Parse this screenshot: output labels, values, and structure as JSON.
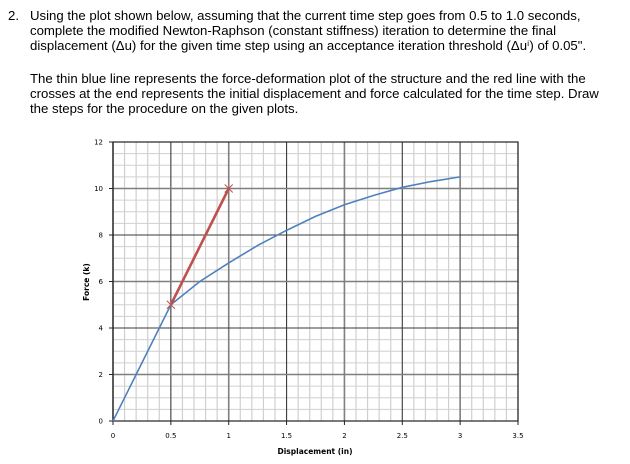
{
  "question": {
    "number": "2.",
    "paragraph1": "Using the plot shown below, assuming that the current time step goes from 0.5 to 1.0 seconds, complete the modified Newton-Raphson (constant stiffness) iteration to determine the final displacement (Δu) for the given time step using an acceptance iteration threshold (Δuⁱ) of 0.05\".",
    "paragraph2": "The thin blue line represents the force-deformation plot of the structure and the red line with the crosses at the end represents the initial displacement and force calculated for the time step. Draw the steps for the procedure on the given plots."
  },
  "chart": {
    "xlabel": "Displacement (in)",
    "ylabel": "Force (k)",
    "xticks": [
      "0",
      "0.5",
      "1",
      "1.5",
      "2",
      "2.5",
      "3",
      "3.5"
    ],
    "yticks": [
      "0",
      "2",
      "4",
      "6",
      "8",
      "10",
      "12"
    ]
  },
  "chart_data": {
    "type": "line",
    "title": "",
    "xlabel": "Displacement (in)",
    "ylabel": "Force (k)",
    "xlim": [
      0,
      3.5
    ],
    "ylim": [
      0,
      12
    ],
    "grid": true,
    "legend": "none",
    "series": [
      {
        "name": "Force-deformation (structure)",
        "color": "#4f81bd",
        "x": [
          0,
          0.5,
          0.75,
          1.0,
          1.25,
          1.5,
          1.75,
          2.0,
          2.25,
          2.5,
          2.75,
          3.0
        ],
        "y": [
          0,
          5.0,
          6.0,
          6.8,
          7.55,
          8.2,
          8.8,
          9.3,
          9.7,
          10.05,
          10.3,
          10.5
        ]
      },
      {
        "name": "Initial displacement and force (time step)",
        "color": "#c0504d",
        "marker": "x",
        "x": [
          0.5,
          1.0
        ],
        "y": [
          5.0,
          10.0
        ]
      }
    ]
  }
}
